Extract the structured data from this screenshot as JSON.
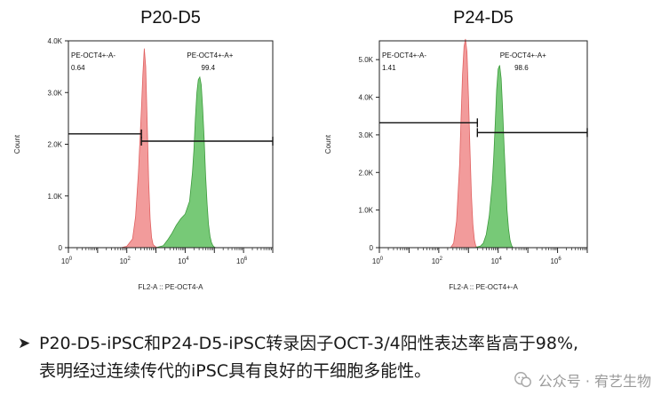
{
  "chart_data": [
    {
      "type": "area",
      "title": "P20-D5",
      "xlabel": "FL2-A :: PE-OCT4-A",
      "ylabel": "Count",
      "x_scale": "log",
      "xlim": [
        1,
        10000000
      ],
      "xticks": [
        {
          "base": "10",
          "exp": "0"
        },
        {
          "base": "10",
          "exp": "2"
        },
        {
          "base": "10",
          "exp": "4"
        },
        {
          "base": "10",
          "exp": "6"
        }
      ],
      "ylim": [
        0,
        4000
      ],
      "yticks": [
        {
          "v": 0,
          "label": "0"
        },
        {
          "v": 1000,
          "label": "1.0K"
        },
        {
          "v": 2000,
          "label": "2.0K"
        },
        {
          "v": 3000,
          "label": "3.0K"
        },
        {
          "v": 4000,
          "label": "4.0K"
        }
      ],
      "grid": false,
      "series": [
        {
          "color": "#f08a8a",
          "x": [
            63,
            100,
            158,
            200,
            251,
            316,
            355,
            398,
            446,
            501,
            562,
            631,
            708,
            794,
            1000,
            1259
          ],
          "y": [
            0,
            25,
            170,
            600,
            1450,
            2650,
            3350,
            3850,
            3500,
            2400,
            1300,
            550,
            200,
            60,
            10,
            0
          ]
        },
        {
          "color": "#5fbf5f",
          "x": [
            1000,
            1778,
            2512,
            3548,
            5012,
            7079,
            10000,
            14125,
            17783,
            20000,
            22387,
            25119,
            28184,
            31623,
            35481,
            39811,
            44668,
            50119,
            56234,
            63096,
            70795,
            79433,
            89125,
            100000,
            112202
          ],
          "y": [
            0,
            40,
            150,
            280,
            440,
            560,
            650,
            900,
            1450,
            1900,
            2500,
            3000,
            3250,
            3300,
            3150,
            2700,
            2100,
            1400,
            850,
            450,
            220,
            100,
            40,
            10,
            0
          ]
        }
      ],
      "gates": [
        {
          "label": "PE-OCT4+-A-",
          "value": "0.64",
          "x_range": [
            1,
            316
          ],
          "y": 2200
        },
        {
          "label": "PE-OCT4+-A+",
          "value": "99.4",
          "x_range": [
            316,
            10000000
          ],
          "y": 2060
        }
      ]
    },
    {
      "type": "area",
      "title": "P24-D5",
      "xlabel": "FL2-A :: PE-OCT4+-A",
      "ylabel": "Count",
      "x_scale": "log",
      "xlim": [
        1,
        10000000
      ],
      "xticks": [
        {
          "base": "10",
          "exp": "0"
        },
        {
          "base": "10",
          "exp": "2"
        },
        {
          "base": "10",
          "exp": "4"
        },
        {
          "base": "10",
          "exp": "6"
        }
      ],
      "ylim": [
        0,
        5500
      ],
      "yticks": [
        {
          "v": 0,
          "label": "0"
        },
        {
          "v": 1000,
          "label": "1.0K"
        },
        {
          "v": 2000,
          "label": "2.0K"
        },
        {
          "v": 3000,
          "label": "3.0K"
        },
        {
          "v": 4000,
          "label": "4.0K"
        },
        {
          "v": 5000,
          "label": "5.0K"
        }
      ],
      "grid": false,
      "series": [
        {
          "color": "#f08a8a",
          "x": [
            250,
            316,
            398,
            501,
            562,
            631,
            708,
            794,
            891,
            1000,
            1122,
            1259,
            1413,
            1585,
            1778,
            2000
          ],
          "y": [
            0,
            120,
            700,
            2200,
            3400,
            4600,
            5350,
            5550,
            5200,
            4000,
            2600,
            1400,
            600,
            200,
            40,
            0
          ]
        },
        {
          "color": "#5fbf5f",
          "x": [
            1585,
            2512,
            3162,
            3981,
            5012,
            6310,
            7079,
            7943,
            8913,
            10000,
            11220,
            12589,
            14125,
            15849,
            17783,
            19953,
            22387,
            25119,
            28184,
            31623
          ],
          "y": [
            0,
            40,
            120,
            350,
            850,
            1700,
            2400,
            3300,
            4200,
            4750,
            4850,
            4500,
            3700,
            2700,
            1800,
            1000,
            500,
            200,
            60,
            0
          ]
        }
      ],
      "gates": [
        {
          "label": "PE-OCT4+-A-",
          "value": "1.41",
          "x_range": [
            1,
            1995
          ],
          "y": 3320
        },
        {
          "label": "PE-OCT4+-A+",
          "value": "98.6",
          "x_range": [
            1995,
            10000000
          ],
          "y": 3060
        }
      ]
    }
  ],
  "caption": {
    "line1": "P20-D5-iPSC和P24-D5-iPSC转录因子OCT-3/4阳性表达率皆高于98%,",
    "line2": "表明经过连续传代的iPSC具有良好的干细胞多能性。"
  },
  "watermark": {
    "text": "公众号 · 宥艺生物"
  },
  "colors": {
    "red_fill": "#f08a8a",
    "green_fill": "#5fbf5f",
    "axis": "#222222"
  }
}
